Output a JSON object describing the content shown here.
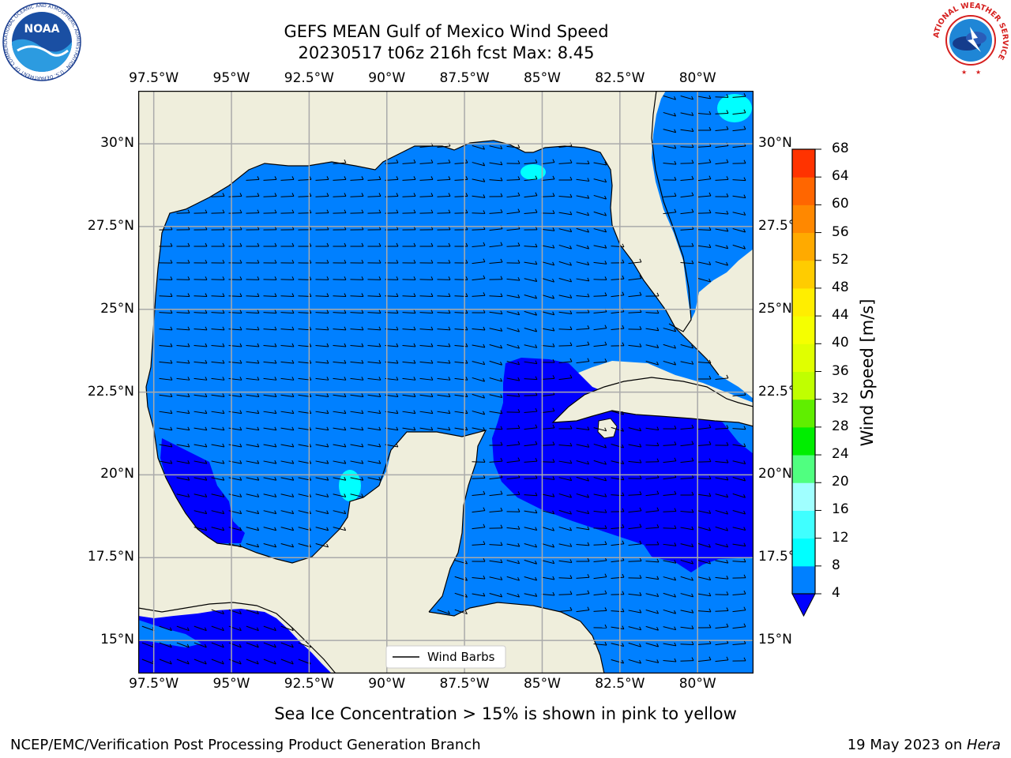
{
  "header": {
    "title_line1": "GEFS MEAN Gulf of Mexico Wind Speed",
    "title_line2": "20230517 t06z 216h fcst   Max: 8.45"
  },
  "logos": {
    "noaa_text": "NOAA",
    "noaa_ring": "NATIONAL OCEANIC AND ATMOSPHERIC ADMINISTRATION · U.S. DEPARTMENT OF COMMERCE",
    "nws_ring": "NATIONAL WEATHER SERVICE"
  },
  "map": {
    "lon_labels": [
      "97.5°W",
      "95°W",
      "92.5°W",
      "90°W",
      "87.5°W",
      "85°W",
      "82.5°W",
      "80°W"
    ],
    "lat_labels": [
      "30°N",
      "27.5°N",
      "25°N",
      "22.5°N",
      "20°N",
      "17.5°N",
      "15°N"
    ],
    "lon_range": [
      -98,
      -78.2
    ],
    "lat_range": [
      14,
      31.6
    ],
    "land_color": "#efeedc",
    "ocean_colors": {
      "4-8": "#0080ff",
      "under-4": "#0000ff",
      "8-12": "#00ffff"
    },
    "legend_label": "Wind Barbs"
  },
  "colorbar": {
    "label": "Wind Speed [m/s]",
    "ticks": [
      "4",
      "8",
      "12",
      "16",
      "20",
      "24",
      "28",
      "32",
      "36",
      "40",
      "44",
      "48",
      "52",
      "56",
      "60",
      "64",
      "68"
    ],
    "colors": [
      "#0080ff",
      "#00ffff",
      "#40ffff",
      "#a0ffff",
      "#50ff80",
      "#00ee00",
      "#60ee00",
      "#c0ff00",
      "#e0ff00",
      "#f5ff00",
      "#ffee00",
      "#ffcc00",
      "#ffaa00",
      "#ff8800",
      "#ff6600",
      "#ff3300"
    ],
    "extend_color": "#0000ff"
  },
  "footer": {
    "note": "Sea Ice Concentration > 15% is shown in pink to yellow",
    "left": "NCEP/EMC/Verification Post Processing Product Generation Branch",
    "right_prefix": "19 May 2023 on ",
    "right_host": "Hera"
  }
}
